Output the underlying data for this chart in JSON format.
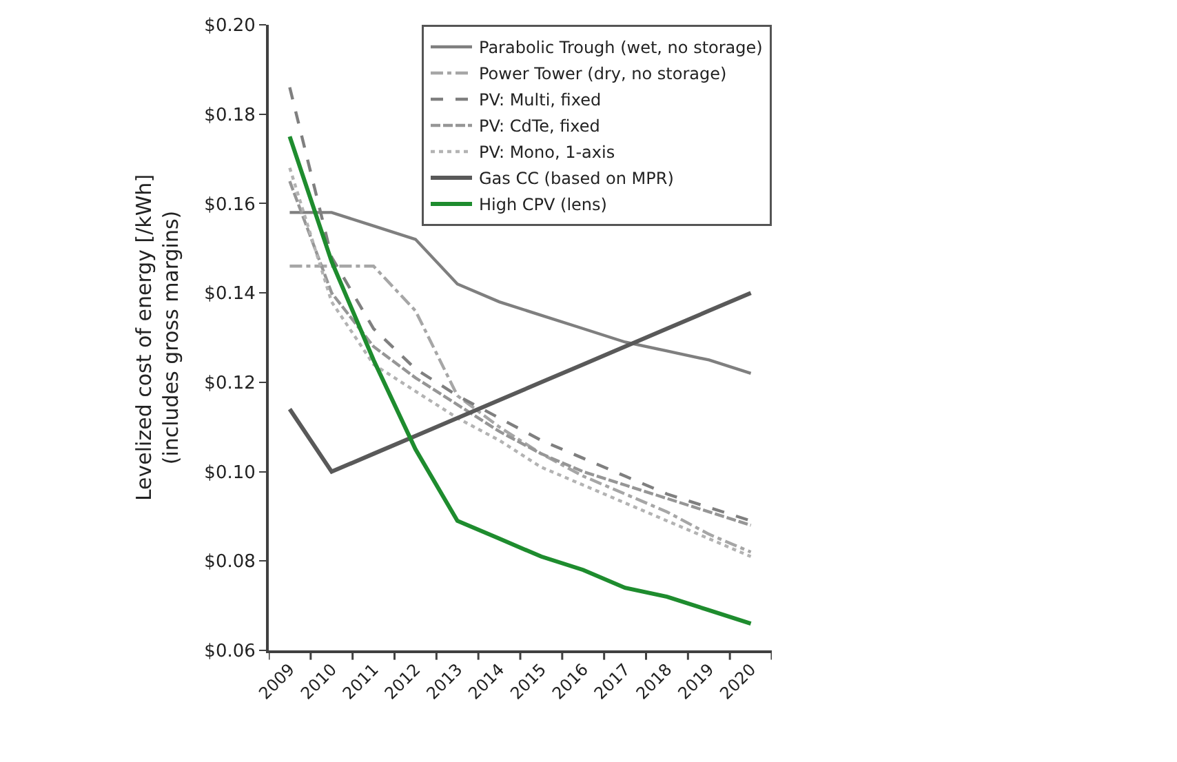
{
  "chart_data": {
    "type": "line",
    "ylabel": "Levelized cost of energy [/kWh]\n(includes gross margins)",
    "categories": [
      "2009",
      "2010",
      "2011",
      "2012",
      "2013",
      "2014",
      "2015",
      "2016",
      "2017",
      "2018",
      "2019",
      "2020"
    ],
    "series": [
      {
        "name": "Parabolic Trough (wet, no storage)",
        "color": "#7f7f7f",
        "line_style": "solid",
        "values": [
          0.158,
          0.158,
          0.155,
          0.152,
          0.142,
          0.138,
          0.135,
          0.132,
          0.129,
          0.127,
          0.125,
          0.122
        ]
      },
      {
        "name": "Power Tower (dry, no storage)",
        "color": "#a6a6a6",
        "line_style": "dashdot",
        "values": [
          0.146,
          0.146,
          0.146,
          0.136,
          0.117,
          0.11,
          0.104,
          0.099,
          0.095,
          0.091,
          0.086,
          0.082
        ]
      },
      {
        "name": "PV: Multi, fixed",
        "color": "#7f7f7f",
        "line_style": "dashed",
        "values": [
          0.186,
          0.148,
          0.132,
          0.123,
          0.117,
          0.112,
          0.107,
          0.103,
          0.099,
          0.095,
          0.092,
          0.089
        ]
      },
      {
        "name": "PV: CdTe, fixed",
        "color": "#969696",
        "line_style": "longdash",
        "values": [
          0.165,
          0.14,
          0.128,
          0.121,
          0.115,
          0.109,
          0.104,
          0.1,
          0.097,
          0.094,
          0.091,
          0.088
        ]
      },
      {
        "name": "PV: Mono, 1-axis",
        "color": "#b3b3b3",
        "line_style": "dotted",
        "values": [
          0.168,
          0.138,
          0.124,
          0.118,
          0.112,
          0.107,
          0.101,
          0.097,
          0.093,
          0.089,
          0.085,
          0.081
        ]
      },
      {
        "name": "Gas CC (based on MPR)",
        "color": "#595959",
        "line_style": "solid",
        "values": [
          0.114,
          0.1,
          0.104,
          0.108,
          0.112,
          0.116,
          0.12,
          0.124,
          0.128,
          0.132,
          0.136,
          0.14
        ]
      },
      {
        "name": "High CPV (lens)",
        "color": "#1e8c2e",
        "line_style": "solid",
        "values": [
          0.175,
          0.147,
          0.125,
          0.105,
          0.089,
          0.085,
          0.081,
          0.078,
          0.074,
          0.072,
          0.069,
          0.066
        ]
      }
    ],
    "ylim": [
      0.06,
      0.2
    ],
    "yticks": [
      {
        "value": 0.06,
        "label": "$0.06"
      },
      {
        "value": 0.08,
        "label": "$0.08"
      },
      {
        "value": 0.1,
        "label": "$0.10"
      },
      {
        "value": 0.12,
        "label": "$0.12"
      },
      {
        "value": 0.14,
        "label": "$0.14"
      },
      {
        "value": 0.16,
        "label": "$0.16"
      },
      {
        "value": 0.18,
        "label": "$0.18"
      },
      {
        "value": 0.2,
        "label": "$0.20"
      }
    ],
    "grid": false,
    "legend": "top right",
    "marker": "none"
  }
}
